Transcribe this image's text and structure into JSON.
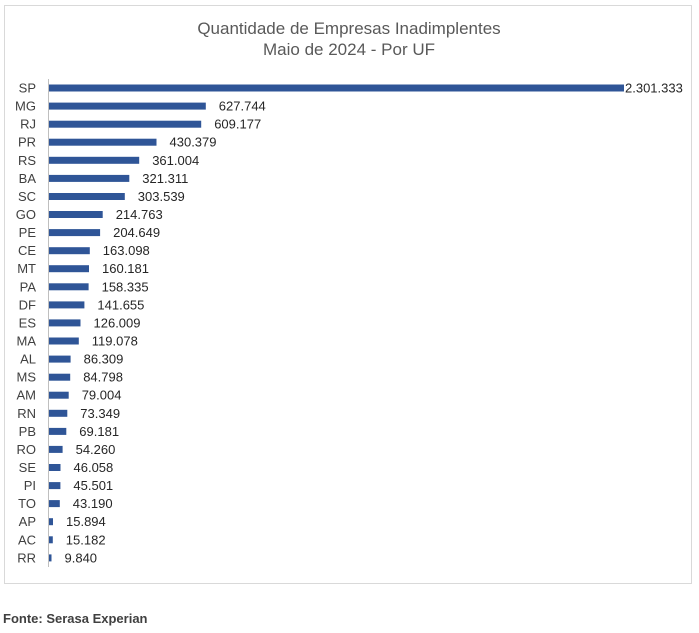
{
  "chart_data": {
    "type": "bar",
    "orientation": "horizontal",
    "title": "Quantidade de Empresas Inadimplentes",
    "subtitle": "Maio de 2024 - Por UF",
    "categories": [
      "SP",
      "MG",
      "RJ",
      "PR",
      "RS",
      "BA",
      "SC",
      "GO",
      "PE",
      "CE",
      "MT",
      "PA",
      "DF",
      "ES",
      "MA",
      "AL",
      "MS",
      "AM",
      "RN",
      "PB",
      "RO",
      "SE",
      "PI",
      "TO",
      "AP",
      "AC",
      "RR"
    ],
    "values": [
      2301333,
      627744,
      609177,
      430379,
      361004,
      321311,
      303539,
      214763,
      204649,
      163098,
      160181,
      158335,
      141655,
      126009,
      119078,
      86309,
      84798,
      79004,
      73349,
      69181,
      54260,
      46058,
      45501,
      43190,
      15894,
      15182,
      9840
    ],
    "value_labels": [
      "2.301.333",
      "627.744",
      "609.177",
      "430.379",
      "361.004",
      "321.311",
      "303.539",
      "214.763",
      "204.649",
      "163.098",
      "160.181",
      "158.335",
      "141.655",
      "126.009",
      "119.078",
      "86.309",
      "84.798",
      "79.004",
      "73.349",
      "69.181",
      "54.260",
      "46.058",
      "45.501",
      "43.190",
      "15.894",
      "15.182",
      "9.840"
    ],
    "xlim": [
      0,
      2301333
    ],
    "grid": false,
    "legend": "none",
    "bar_color": "#2f5597",
    "axis_color": "#bfbfbf"
  },
  "source": "Fonte: Serasa Experian"
}
